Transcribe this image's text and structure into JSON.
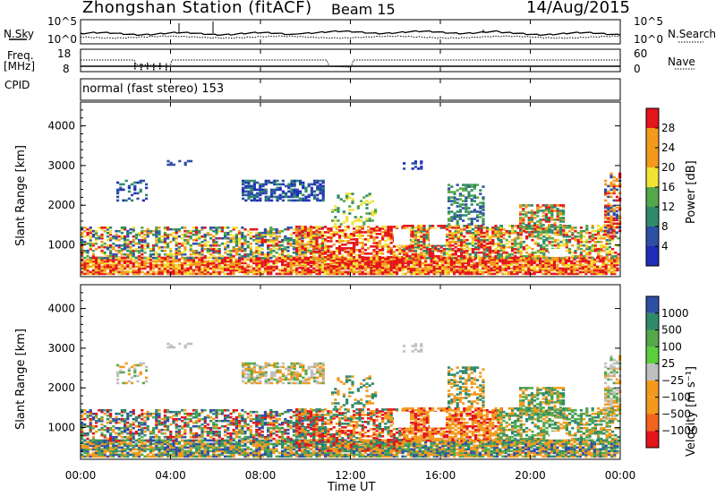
{
  "header": {
    "station": "Zhongshan Station (fitACF)",
    "beam": "Beam 15",
    "date": "14/Aug/2015"
  },
  "noise_panel": {
    "left_label": "N.Sky",
    "right_label": "N.Search",
    "ytick_top_left": "10^5",
    "ytick_bottom_left": "10^0",
    "ytick_top_right": "10^5",
    "ytick_bottom_right": "10^0"
  },
  "freq_panel": {
    "left_label_1": "Freq.",
    "left_label_2": "[MHz]",
    "right_label": "Nave",
    "ytick_top_left": "18",
    "ytick_bottom_left": "8",
    "ytick_top_right": "60",
    "ytick_bottom_right": "0"
  },
  "cpid": {
    "label": "CPID",
    "value": "normal (fast stereo) 153"
  },
  "colors": {
    "red": "#e4151b",
    "orange": "#f39a1d",
    "yellow": "#f2e232",
    "green": "#55a84a",
    "teal": "#2f8a6a",
    "blue": "#2e4fa6",
    "dblue": "#1f2db8",
    "grey": "#bfbfbf",
    "lgreen": "#5bcf3b"
  },
  "chart_data": [
    {
      "type": "heatmap",
      "title": "",
      "xlabel": "",
      "ylabel": "Slant Range [km]",
      "xticks": [
        "00:00",
        "04:00",
        "08:00",
        "12:00",
        "16:00",
        "20:00",
        "00:00"
      ],
      "yticks": [
        "1000",
        "2000",
        "3000",
        "4000"
      ],
      "ylim": [
        200,
        4600
      ],
      "colorbar": {
        "label": "Power [dB]",
        "ticks": [
          "4",
          "8",
          "12",
          "16",
          "20",
          "24",
          "28"
        ],
        "range": [
          0,
          30
        ],
        "colors": [
          "#1f2db8",
          "#2e4fa6",
          "#2f8a6a",
          "#55a84a",
          "#f2e232",
          "#f39a1d",
          "#e4151b"
        ]
      }
    },
    {
      "type": "heatmap",
      "title": "",
      "xlabel": "Time UT",
      "ylabel": "Slant Range [km]",
      "xticks": [
        "00:00",
        "04:00",
        "08:00",
        "12:00",
        "16:00",
        "20:00",
        "00:00"
      ],
      "yticks": [
        "1000",
        "2000",
        "3000",
        "4000"
      ],
      "ylim": [
        200,
        4600
      ],
      "colorbar": {
        "label": "Velocity [m s⁻¹]",
        "ticks": [
          "1000",
          "500",
          "100",
          "25",
          "−25",
          "−100",
          "−500",
          "−1000"
        ],
        "colors": [
          "#2e4fa6",
          "#2f8a6a",
          "#55a84a",
          "#5bcf3b",
          "#bfbfbf",
          "#f39a1d",
          "#f37a1d",
          "#e4151b"
        ]
      }
    }
  ]
}
